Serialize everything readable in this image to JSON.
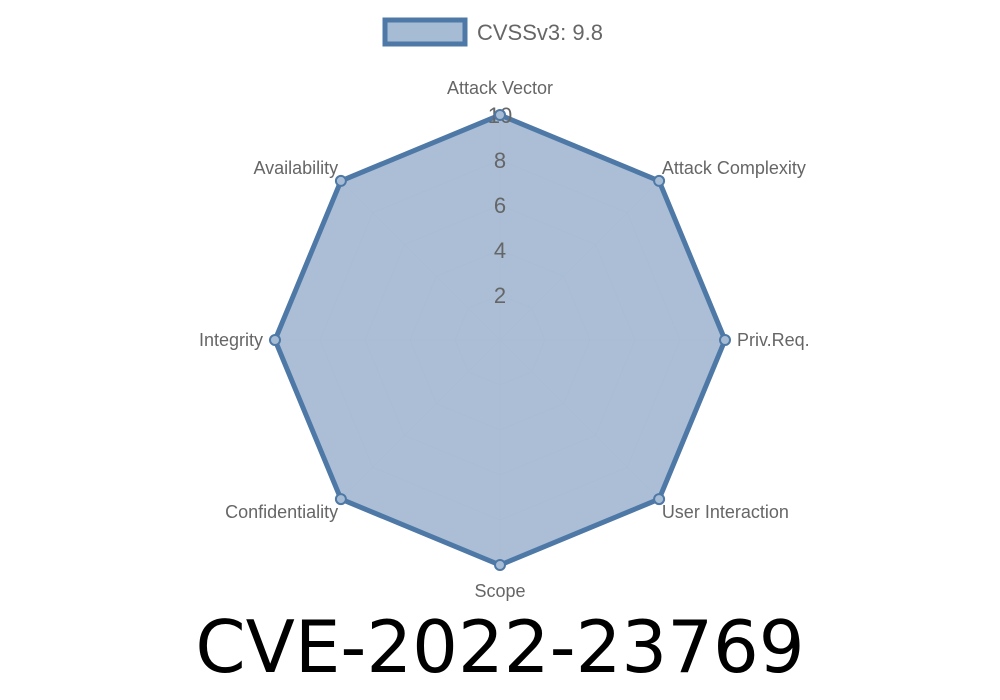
{
  "chart_data": {
    "type": "radar",
    "legend": {
      "position": "top",
      "entries": [
        "CVSSv3: 9.8"
      ]
    },
    "categories": [
      "Attack Vector",
      "Attack Complexity",
      "Priv.Req.",
      "User Interaction",
      "Scope",
      "Confidentiality",
      "Integrity",
      "Availability"
    ],
    "series": [
      {
        "name": "CVSSv3: 9.8",
        "values": [
          10,
          10,
          10,
          10,
          10,
          10,
          10,
          10
        ]
      }
    ],
    "r_range": [
      0,
      10
    ],
    "ticks": [
      "2",
      "4",
      "6",
      "8",
      "10"
    ],
    "grid": true,
    "colors": {
      "stroke": "#4e78a6",
      "fill": "#a6bbd4",
      "grid": "#c8ccd4",
      "text": "#666666"
    }
  },
  "title": "CVE-2022-23769"
}
